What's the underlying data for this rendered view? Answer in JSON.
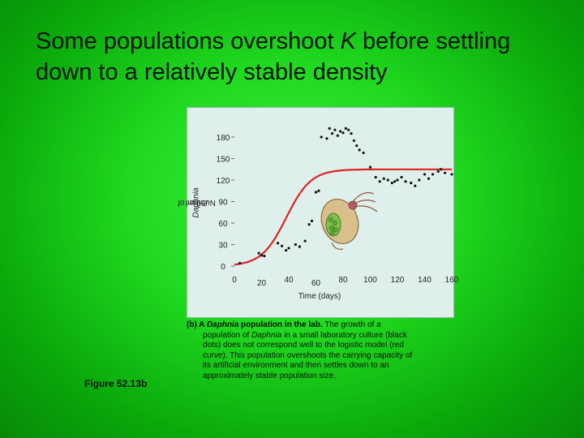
{
  "slide": {
    "title_part1": "Some populations overshoot ",
    "title_k": "K",
    "title_part2": " before settling down to a relatively stable density",
    "figure_label": "Figure 52.13b"
  },
  "caption": {
    "prefix": "(b) A ",
    "bold_italic": "Daphnia",
    "bold_rest": " population in the lab.",
    "text1": " The growth of a",
    "text2": "population of ",
    "text2_italic": "Daphnia",
    "text2_rest": " in a small laboratory culture (black",
    "text3": "dots) does not correspond well to the logistic model (red",
    "text4": "curve). This population overshoots the carrying capacity of",
    "text5": "its artificial environment and then settles down to an",
    "text6": "approximately stable population size."
  },
  "chart_data": {
    "type": "scatter",
    "xlabel": "Time (days)",
    "ylabel_prefix": "Number of ",
    "ylabel_italic": "Daphnia",
    "ylabel_suffix": "/50 ml",
    "xlim": [
      0,
      160
    ],
    "ylim": [
      0,
      180
    ],
    "x_ticks": [
      0,
      20,
      40,
      60,
      80,
      100,
      120,
      140,
      160
    ],
    "y_ticks": [
      0,
      30,
      60,
      90,
      120,
      150,
      180
    ],
    "colors": {
      "points": "#111111",
      "curve": "#e02020"
    },
    "observed": {
      "x": [
        4,
        18,
        20,
        22,
        32,
        35,
        38,
        40,
        45,
        48,
        52,
        55,
        57,
        60,
        62,
        64,
        68,
        70,
        72,
        74,
        76,
        78,
        80,
        82,
        84,
        86,
        88,
        90,
        92,
        95,
        100,
        104,
        107,
        110,
        113,
        116,
        118,
        120,
        123,
        126,
        130,
        133,
        136,
        140,
        143,
        146,
        150,
        152,
        155,
        160
      ],
      "y": [
        4,
        18,
        15,
        14,
        32,
        28,
        22,
        25,
        30,
        27,
        35,
        58,
        63,
        103,
        105,
        180,
        178,
        192,
        185,
        190,
        182,
        188,
        186,
        192,
        190,
        185,
        175,
        168,
        162,
        158,
        138,
        124,
        118,
        122,
        120,
        116,
        118,
        120,
        124,
        118,
        116,
        112,
        120,
        128,
        122,
        128,
        132,
        135,
        130,
        128
      ]
    },
    "logistic_model": {
      "K": 135,
      "r": 0.11,
      "N0": 2
    }
  }
}
